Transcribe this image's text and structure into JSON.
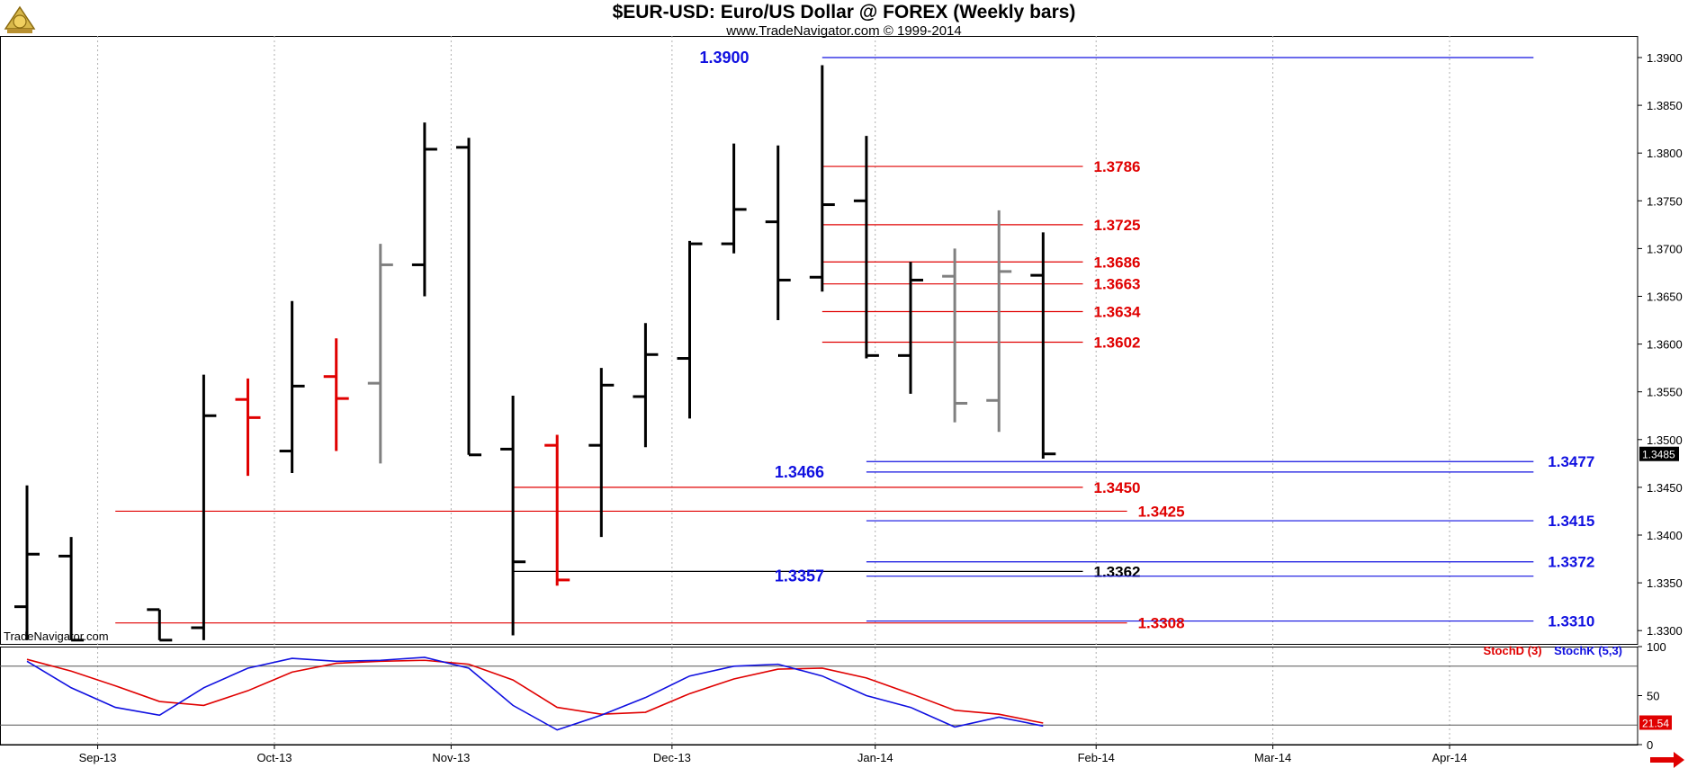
{
  "header": {
    "title": "$EUR-USD:  Euro/US Dollar @ FOREX  (Weekly bars)",
    "subtitle": "www.TradeNavigator.com © 1999-2014",
    "watermark": "TradeNavigator.com"
  },
  "logo_icon": "trade-navigator-logo-icon",
  "colors": {
    "up_bar": "#000000",
    "down_bar": "#e00000",
    "neutral_bar": "#808080",
    "red_level": "#e00000",
    "blue_level": "#1010e0",
    "black_level": "#000000",
    "grid": "#b0b0b0",
    "price_tag_bg": "#000000",
    "stoch_tag_bg": "#e00000"
  },
  "chart_data": {
    "type": "ohlc",
    "title": "$EUR-USD:  Euro/US Dollar @ FOREX  (Weekly bars)",
    "ylim": [
      1.329,
      1.3918
    ],
    "y_ticks": [
      "1.3900",
      "1.3850",
      "1.3800",
      "1.3750",
      "1.3700",
      "1.3650",
      "1.3600",
      "1.3550",
      "1.3500",
      "1.3450",
      "1.3400",
      "1.3350",
      "1.3300"
    ],
    "y_tick_values": [
      1.39,
      1.385,
      1.38,
      1.375,
      1.37,
      1.365,
      1.36,
      1.355,
      1.35,
      1.345,
      1.34,
      1.335,
      1.33
    ],
    "current_price_label": "1.3485",
    "current_price": 1.3485,
    "x_ticks": [
      {
        "label": "Sep-13",
        "week": 1.6
      },
      {
        "label": "Oct-13",
        "week": 5.6
      },
      {
        "label": "Nov-13",
        "week": 9.6
      },
      {
        "label": "Dec-13",
        "week": 14.6
      },
      {
        "label": "Jan-14",
        "week": 19.2
      },
      {
        "label": "Feb-14",
        "week": 24.2
      },
      {
        "label": "Mar-14",
        "week": 28.2
      },
      {
        "label": "Apr-14",
        "week": 32.2
      }
    ],
    "bars": [
      {
        "week": 0,
        "open": 1.3325,
        "high": 1.3452,
        "low": 1.329,
        "close": 1.338,
        "color": "up"
      },
      {
        "week": 1,
        "open": 1.3378,
        "high": 1.3398,
        "low": 1.329,
        "close": 1.329,
        "color": "up"
      },
      {
        "week": 3,
        "open": 1.3322,
        "high": 1.3322,
        "low": 1.329,
        "close": 1.329,
        "color": "up"
      },
      {
        "week": 4,
        "open": 1.3303,
        "high": 1.3568,
        "low": 1.329,
        "close": 1.3525,
        "color": "up"
      },
      {
        "week": 5,
        "open": 1.3542,
        "high": 1.3564,
        "low": 1.3462,
        "close": 1.3523,
        "color": "down"
      },
      {
        "week": 6,
        "open": 1.3488,
        "high": 1.3645,
        "low": 1.3465,
        "close": 1.3556,
        "color": "up"
      },
      {
        "week": 7,
        "open": 1.3566,
        "high": 1.3606,
        "low": 1.3488,
        "close": 1.3543,
        "color": "down"
      },
      {
        "week": 8,
        "open": 1.3559,
        "high": 1.3705,
        "low": 1.3475,
        "close": 1.3683,
        "color": "neutral"
      },
      {
        "week": 9,
        "open": 1.3683,
        "high": 1.3832,
        "low": 1.365,
        "close": 1.3804,
        "color": "up"
      },
      {
        "week": 10,
        "open": 1.3806,
        "high": 1.3816,
        "low": 1.3484,
        "close": 1.3484,
        "color": "up"
      },
      {
        "week": 11,
        "open": 1.349,
        "high": 1.3546,
        "low": 1.3295,
        "close": 1.3372,
        "color": "up"
      },
      {
        "week": 12,
        "open": 1.3494,
        "high": 1.3505,
        "low": 1.3347,
        "close": 1.3353,
        "color": "down"
      },
      {
        "week": 13,
        "open": 1.3494,
        "high": 1.3575,
        "low": 1.3398,
        "close": 1.3557,
        "color": "up"
      },
      {
        "week": 14,
        "open": 1.3545,
        "high": 1.3622,
        "low": 1.3492,
        "close": 1.3589,
        "color": "up"
      },
      {
        "week": 15,
        "open": 1.3585,
        "high": 1.3708,
        "low": 1.3522,
        "close": 1.3705,
        "color": "up"
      },
      {
        "week": 16,
        "open": 1.3705,
        "high": 1.381,
        "low": 1.3695,
        "close": 1.3741,
        "color": "up"
      },
      {
        "week": 17,
        "open": 1.3728,
        "high": 1.3808,
        "low": 1.3625,
        "close": 1.3667,
        "color": "up"
      },
      {
        "week": 18,
        "open": 1.367,
        "high": 1.3892,
        "low": 1.3655,
        "close": 1.3746,
        "color": "up"
      },
      {
        "week": 19,
        "open": 1.375,
        "high": 1.3818,
        "low": 1.3585,
        "close": 1.3588,
        "color": "up"
      },
      {
        "week": 20,
        "open": 1.3588,
        "high": 1.3686,
        "low": 1.3548,
        "close": 1.3667,
        "color": "up"
      },
      {
        "week": 21,
        "open": 1.3671,
        "high": 1.37,
        "low": 1.3518,
        "close": 1.3538,
        "color": "neutral"
      },
      {
        "week": 22,
        "open": 1.3541,
        "high": 1.374,
        "low": 1.3508,
        "close": 1.3676,
        "color": "neutral"
      },
      {
        "week": 23,
        "open": 1.3672,
        "high": 1.3717,
        "low": 1.348,
        "close": 1.3485,
        "color": "up"
      }
    ],
    "levels": [
      {
        "label": "1.3900",
        "value": 1.39,
        "color": "blue",
        "from_week": 18,
        "to_week": 34.1,
        "label_side": "left",
        "label_week": 17.2
      },
      {
        "label": "1.3786",
        "value": 1.3786,
        "color": "red",
        "from_week": 18,
        "to_week": 23.9,
        "label_side": "right"
      },
      {
        "label": "1.3725",
        "value": 1.3725,
        "color": "red",
        "from_week": 18,
        "to_week": 23.9,
        "label_side": "right"
      },
      {
        "label": "1.3686",
        "value": 1.3686,
        "color": "red",
        "from_week": 18,
        "to_week": 23.9,
        "label_side": "right"
      },
      {
        "label": "1.3663",
        "value": 1.3663,
        "color": "red",
        "from_week": 18,
        "to_week": 23.9,
        "label_side": "right"
      },
      {
        "label": "1.3634",
        "value": 1.3634,
        "color": "red",
        "from_week": 18,
        "to_week": 23.9,
        "label_side": "right"
      },
      {
        "label": "1.3602",
        "value": 1.3602,
        "color": "red",
        "from_week": 18,
        "to_week": 23.9,
        "label_side": "right"
      },
      {
        "label": "1.3477",
        "value": 1.3477,
        "color": "blue",
        "from_week": 19,
        "to_week": 34.1,
        "label_side": "right"
      },
      {
        "label": "1.3466",
        "value": 1.3466,
        "color": "blue",
        "from_week": 19,
        "to_week": 34.1,
        "label_side": "left",
        "label_week": 18.9
      },
      {
        "label": "1.3450",
        "value": 1.345,
        "color": "red",
        "from_week": 11,
        "to_week": 23.9,
        "label_side": "right"
      },
      {
        "label": "1.3425",
        "value": 1.3425,
        "color": "red",
        "from_week": 2,
        "to_week": 24.9,
        "label_side": "right"
      },
      {
        "label": "1.3415",
        "value": 1.3415,
        "color": "blue",
        "from_week": 19,
        "to_week": 34.1,
        "label_side": "right"
      },
      {
        "label": "1.3372",
        "value": 1.3372,
        "color": "blue",
        "from_week": 19,
        "to_week": 34.1,
        "label_side": "right"
      },
      {
        "label": "1.3362",
        "value": 1.3362,
        "color": "black",
        "from_week": 11,
        "to_week": 23.9,
        "label_side": "right"
      },
      {
        "label": "1.3357",
        "value": 1.3357,
        "color": "blue",
        "from_week": 19,
        "to_week": 34.1,
        "label_side": "left",
        "label_week": 18.9
      },
      {
        "label": "1.3310",
        "value": 1.331,
        "color": "blue",
        "from_week": 19,
        "to_week": 34.1,
        "label_side": "right"
      },
      {
        "label": "1.3308",
        "value": 1.3308,
        "color": "red",
        "from_week": 2,
        "to_week": 24.9,
        "label_side": "right"
      }
    ],
    "stochastic": {
      "legend_d": "StochD (3)",
      "legend_k": "StochK (5,3)",
      "ylim": [
        0,
        100
      ],
      "y_ticks": [
        "100",
        "50",
        "0"
      ],
      "y_tick_values": [
        100,
        50,
        0
      ],
      "reference_lines": [
        80,
        20
      ],
      "current_value_label": "21.54",
      "current_value": 21.54,
      "stoch_d": [
        {
          "week": 0,
          "value": 87
        },
        {
          "week": 1,
          "value": 75
        },
        {
          "week": 2,
          "value": 60
        },
        {
          "week": 3,
          "value": 44
        },
        {
          "week": 4,
          "value": 40
        },
        {
          "week": 5,
          "value": 55
        },
        {
          "week": 6,
          "value": 74
        },
        {
          "week": 7,
          "value": 83
        },
        {
          "week": 8,
          "value": 85
        },
        {
          "week": 9,
          "value": 86
        },
        {
          "week": 10,
          "value": 82
        },
        {
          "week": 11,
          "value": 66
        },
        {
          "week": 12,
          "value": 38
        },
        {
          "week": 13,
          "value": 31
        },
        {
          "week": 14,
          "value": 33
        },
        {
          "week": 15,
          "value": 52
        },
        {
          "week": 16,
          "value": 67
        },
        {
          "week": 17,
          "value": 77
        },
        {
          "week": 18,
          "value": 78
        },
        {
          "week": 19,
          "value": 68
        },
        {
          "week": 20,
          "value": 52
        },
        {
          "week": 21,
          "value": 35
        },
        {
          "week": 22,
          "value": 31
        },
        {
          "week": 23,
          "value": 22
        }
      ],
      "stoch_k": [
        {
          "week": 0,
          "value": 85
        },
        {
          "week": 1,
          "value": 58
        },
        {
          "week": 2,
          "value": 38
        },
        {
          "week": 3,
          "value": 30
        },
        {
          "week": 4,
          "value": 58
        },
        {
          "week": 5,
          "value": 78
        },
        {
          "week": 6,
          "value": 88
        },
        {
          "week": 7,
          "value": 85
        },
        {
          "week": 8,
          "value": 86
        },
        {
          "week": 9,
          "value": 89
        },
        {
          "week": 10,
          "value": 78
        },
        {
          "week": 11,
          "value": 40
        },
        {
          "week": 12,
          "value": 15
        },
        {
          "week": 13,
          "value": 30
        },
        {
          "week": 14,
          "value": 48
        },
        {
          "week": 15,
          "value": 70
        },
        {
          "week": 16,
          "value": 80
        },
        {
          "week": 17,
          "value": 82
        },
        {
          "week": 18,
          "value": 70
        },
        {
          "week": 19,
          "value": 50
        },
        {
          "week": 20,
          "value": 38
        },
        {
          "week": 21,
          "value": 18
        },
        {
          "week": 22,
          "value": 28
        },
        {
          "week": 23,
          "value": 19
        }
      ]
    }
  }
}
